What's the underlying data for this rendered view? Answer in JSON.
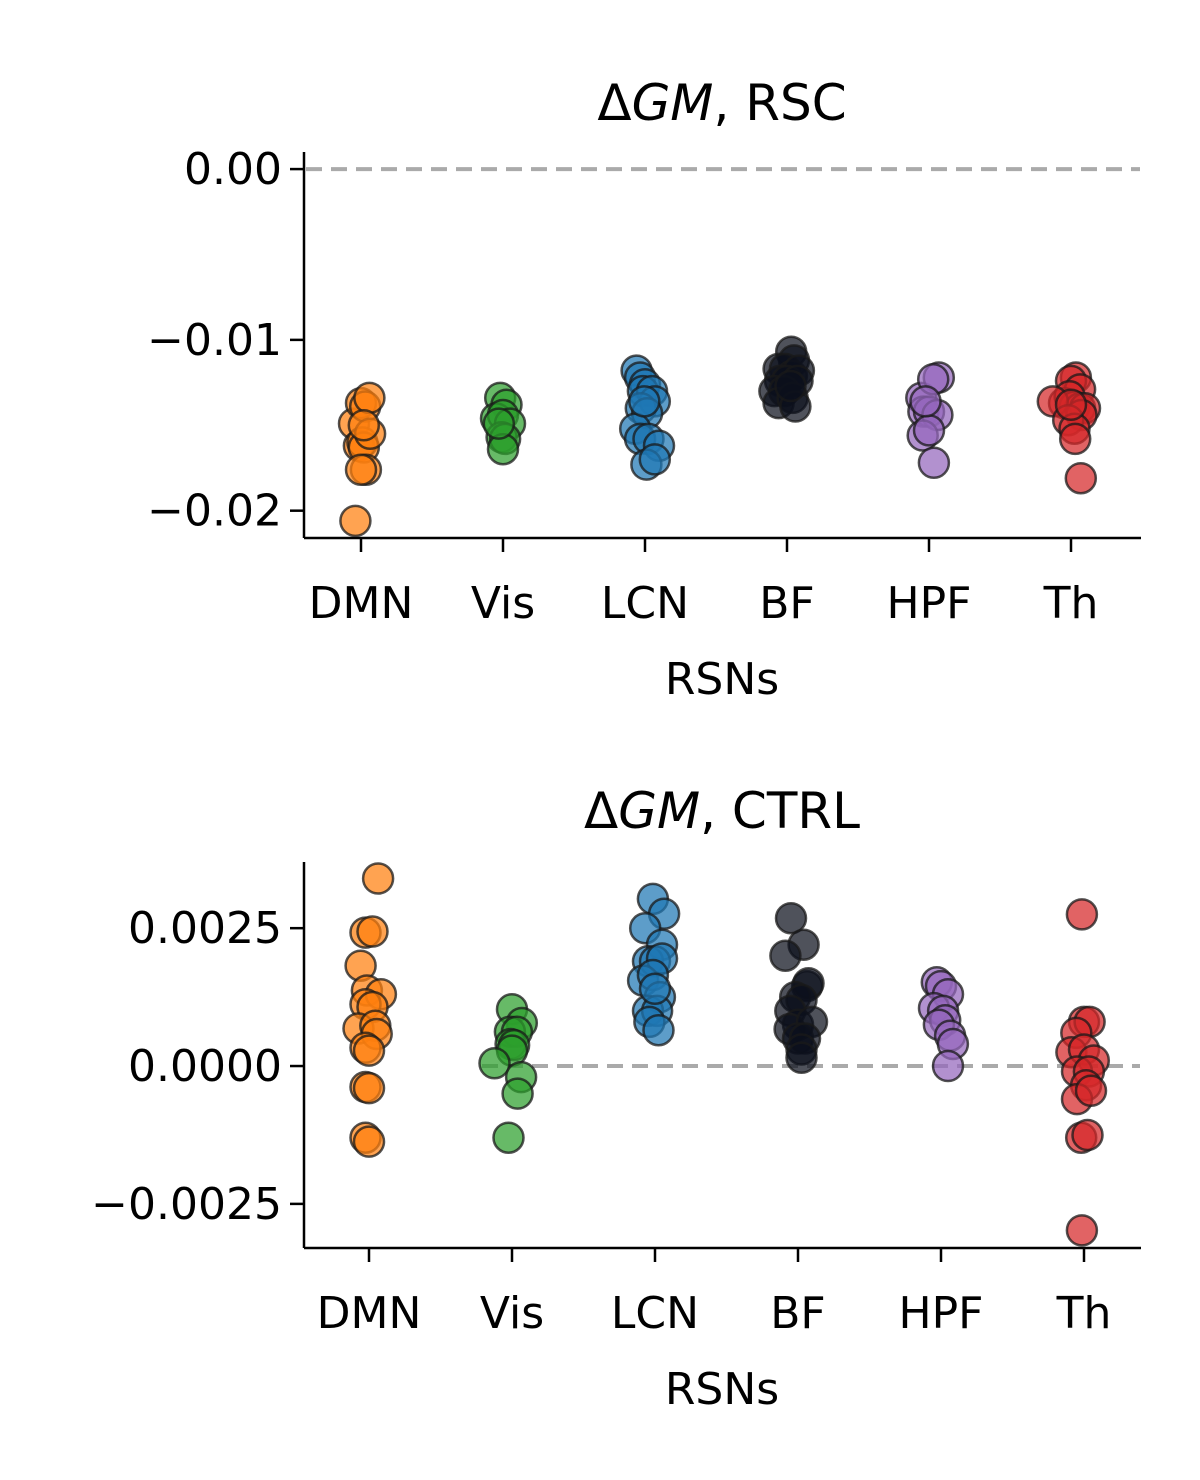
{
  "chart_data": [
    {
      "type": "scatter",
      "title": "ΔGM, RSC",
      "title_parts": [
        {
          "text": "Δ",
          "italic": false
        },
        {
          "text": "GM",
          "italic": true
        },
        {
          "text": ", RSC",
          "italic": false
        }
      ],
      "xlabel": "RSNs",
      "ylabel": "",
      "categories": [
        "DMN",
        "Vis",
        "LCN",
        "BF",
        "HPF",
        "Th"
      ],
      "ylim": [
        -0.0216,
        0.001
      ],
      "yticks": [
        0.0,
        -0.01,
        -0.02
      ],
      "ytick_labels": [
        "0.00",
        "−0.01",
        "−0.02"
      ],
      "reference_line": 0.0,
      "grid": false,
      "colors": [
        "#ff7f0e",
        "#2ca02c",
        "#1f77b4",
        "#0b0f1c",
        "#9467bd",
        "#d62728"
      ],
      "series": [
        {
          "category": "DMN",
          "points": [
            [
              -0.1,
              -0.0149
            ],
            [
              0.0,
              -0.0137
            ],
            [
              0.06,
              -0.0139
            ],
            [
              0.12,
              -0.0134
            ],
            [
              -0.03,
              -0.0162
            ],
            [
              0.02,
              -0.016
            ],
            [
              0.04,
              -0.0163
            ],
            [
              0.13,
              -0.0155
            ],
            [
              0.07,
              -0.0176
            ],
            [
              0.0,
              -0.0176
            ],
            [
              -0.08,
              -0.0206
            ],
            [
              0.04,
              -0.015
            ]
          ]
        },
        {
          "category": "Vis",
          "points": [
            [
              -0.04,
              -0.0134
            ],
            [
              0.05,
              -0.0138
            ],
            [
              -0.1,
              -0.0146
            ],
            [
              0.0,
              -0.0144
            ],
            [
              0.1,
              -0.0149
            ],
            [
              -0.02,
              -0.0157
            ],
            [
              0.03,
              -0.0158
            ],
            [
              0.0,
              -0.0164
            ],
            [
              -0.06,
              -0.0149
            ]
          ]
        },
        {
          "category": "LCN",
          "points": [
            [
              -0.12,
              -0.0118
            ],
            [
              -0.07,
              -0.0122
            ],
            [
              0.0,
              -0.0126
            ],
            [
              -0.03,
              -0.013
            ],
            [
              0.1,
              -0.013
            ],
            [
              0.14,
              -0.0136
            ],
            [
              -0.06,
              -0.014
            ],
            [
              0.03,
              -0.0143
            ],
            [
              -0.14,
              -0.0152
            ],
            [
              -0.07,
              -0.0158
            ],
            [
              0.05,
              -0.0158
            ],
            [
              0.2,
              -0.0162
            ],
            [
              0.02,
              -0.0173
            ],
            [
              0.14,
              -0.017
            ],
            [
              -0.01,
              -0.0136
            ]
          ]
        },
        {
          "category": "BF",
          "points": [
            [
              0.06,
              -0.0107
            ],
            [
              0.1,
              -0.0112
            ],
            [
              -0.12,
              -0.0117
            ],
            [
              -0.03,
              -0.0117
            ],
            [
              0.07,
              -0.0121
            ],
            [
              0.17,
              -0.0118
            ],
            [
              -0.1,
              -0.0124
            ],
            [
              0.0,
              -0.0124
            ],
            [
              0.15,
              -0.0124
            ],
            [
              -0.18,
              -0.013
            ],
            [
              -0.04,
              -0.013
            ],
            [
              -0.12,
              -0.0137
            ],
            [
              0.08,
              -0.0134
            ],
            [
              0.12,
              -0.0139
            ],
            [
              0.05,
              -0.0127
            ]
          ]
        },
        {
          "category": "HPF",
          "points": [
            [
              -0.11,
              -0.0134
            ],
            [
              0.14,
              -0.0122
            ],
            [
              0.06,
              -0.0123
            ],
            [
              -0.08,
              -0.0142
            ],
            [
              0.0,
              -0.0142
            ],
            [
              0.12,
              -0.0144
            ],
            [
              -0.09,
              -0.0156
            ],
            [
              0.0,
              -0.0153
            ],
            [
              0.07,
              -0.0172
            ],
            [
              -0.05,
              -0.0136
            ]
          ]
        },
        {
          "category": "Th",
          "points": [
            [
              0.07,
              -0.0122
            ],
            [
              0.0,
              -0.0124
            ],
            [
              0.13,
              -0.0129
            ],
            [
              -0.1,
              -0.0137
            ],
            [
              -0.02,
              -0.0133
            ],
            [
              0.05,
              -0.0139
            ],
            [
              0.13,
              -0.014
            ],
            [
              0.2,
              -0.014
            ],
            [
              -0.26,
              -0.0136
            ],
            [
              0.15,
              -0.0144
            ],
            [
              -0.04,
              -0.0147
            ],
            [
              0.05,
              -0.0152
            ],
            [
              0.06,
              -0.0158
            ],
            [
              0.14,
              -0.0181
            ],
            [
              0.0,
              -0.0138
            ]
          ]
        }
      ]
    },
    {
      "type": "scatter",
      "title": "ΔGM, CTRL",
      "title_parts": [
        {
          "text": "Δ",
          "italic": false
        },
        {
          "text": "GM",
          "italic": true
        },
        {
          "text": ", CTRL",
          "italic": false
        }
      ],
      "xlabel": "RSNs",
      "ylabel": "",
      "categories": [
        "DMN",
        "Vis",
        "LCN",
        "BF",
        "HPF",
        "Th"
      ],
      "ylim": [
        -0.0033,
        0.0037
      ],
      "yticks": [
        0.0025,
        0.0,
        -0.0025
      ],
      "ytick_labels": [
        "0.0025",
        "0.0000",
        "−0.0025"
      ],
      "reference_line": 0.0,
      "grid": false,
      "colors": [
        "#ff7f0e",
        "#2ca02c",
        "#1f77b4",
        "#0b0f1c",
        "#9467bd",
        "#d62728"
      ],
      "series": [
        {
          "category": "DMN",
          "points": [
            [
              0.13,
              0.0034
            ],
            [
              -0.05,
              0.00242
            ],
            [
              0.05,
              0.00244
            ],
            [
              -0.12,
              0.00182
            ],
            [
              -0.03,
              0.00137
            ],
            [
              0.17,
              0.0013
            ],
            [
              -0.05,
              0.00112
            ],
            [
              0.05,
              0.00107
            ],
            [
              -0.15,
              0.00068
            ],
            [
              0.09,
              0.00073
            ],
            [
              0.11,
              0.00058
            ],
            [
              -0.05,
              0.00033
            ],
            [
              0.0,
              0.00028
            ],
            [
              -0.05,
              -0.00038
            ],
            [
              0.0,
              -0.0004
            ],
            [
              -0.05,
              -0.0013
            ],
            [
              0.0,
              -0.00137
            ]
          ]
        },
        {
          "category": "Vis",
          "points": [
            [
              0.0,
              0.00103
            ],
            [
              0.14,
              0.00078
            ],
            [
              -0.03,
              0.00062
            ],
            [
              0.07,
              0.00062
            ],
            [
              -0.02,
              0.0004
            ],
            [
              0.03,
              0.00038
            ],
            [
              0.0,
              0.00028
            ],
            [
              -0.25,
              5e-05
            ],
            [
              0.13,
              -0.0002
            ],
            [
              0.08,
              -0.0005
            ],
            [
              -0.05,
              -0.0013
            ]
          ]
        },
        {
          "category": "LCN",
          "points": [
            [
              -0.03,
              0.00303
            ],
            [
              0.13,
              0.00276
            ],
            [
              -0.14,
              0.0025
            ],
            [
              0.1,
              0.0022
            ],
            [
              -0.1,
              0.0019
            ],
            [
              0.0,
              0.0019
            ],
            [
              0.1,
              0.00195
            ],
            [
              -0.17,
              0.00155
            ],
            [
              -0.03,
              0.00165
            ],
            [
              0.07,
              0.00125
            ],
            [
              -0.1,
              0.001
            ],
            [
              0.03,
              0.001
            ],
            [
              -0.08,
              0.0008
            ],
            [
              0.05,
              0.00065
            ],
            [
              0.0,
              0.0014
            ]
          ]
        },
        {
          "category": "BF",
          "points": [
            [
              -0.1,
              0.00268
            ],
            [
              0.08,
              0.0022
            ],
            [
              -0.18,
              0.002
            ],
            [
              0.13,
              0.00145
            ],
            [
              0.15,
              0.0015
            ],
            [
              -0.04,
              0.00125
            ],
            [
              0.05,
              0.0012
            ],
            [
              -0.11,
              0.001
            ],
            [
              0.0,
              0.00075
            ],
            [
              -0.12,
              0.00067
            ],
            [
              0.2,
              0.0008
            ],
            [
              0.0,
              0.0005
            ],
            [
              0.1,
              0.0005
            ],
            [
              0.05,
              0.0003
            ],
            [
              0.05,
              0.00015
            ]
          ]
        },
        {
          "category": "HPF",
          "points": [
            [
              -0.06,
              0.00152
            ],
            [
              0.0,
              0.00145
            ],
            [
              0.1,
              0.0013
            ],
            [
              -0.1,
              0.00105
            ],
            [
              0.03,
              0.001
            ],
            [
              0.06,
              0.00083
            ],
            [
              -0.03,
              0.00075
            ],
            [
              0.13,
              0.00055
            ],
            [
              0.17,
              0.0004
            ],
            [
              0.1,
              0.0
            ]
          ]
        },
        {
          "category": "Th",
          "points": [
            [
              -0.03,
              0.00275
            ],
            [
              0.0,
              0.0008
            ],
            [
              0.08,
              0.0008
            ],
            [
              -0.11,
              0.0006
            ],
            [
              -0.18,
              0.00025
            ],
            [
              0.0,
              0.0003
            ],
            [
              0.14,
              0.0001
            ],
            [
              -0.1,
              -0.0001
            ],
            [
              0.07,
              -0.0001
            ],
            [
              0.03,
              -0.00035
            ],
            [
              -0.1,
              -0.0006
            ],
            [
              0.1,
              -0.00045
            ],
            [
              -0.04,
              -0.0013
            ],
            [
              0.05,
              -0.00125
            ],
            [
              -0.03,
              -0.00298
            ]
          ]
        }
      ]
    }
  ]
}
